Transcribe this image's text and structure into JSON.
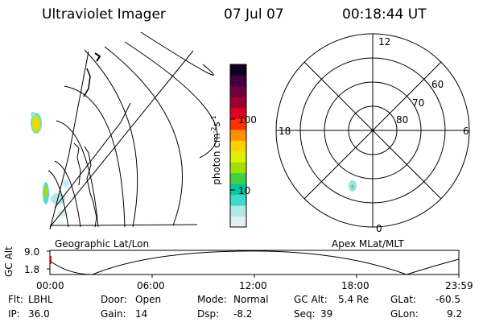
{
  "header": {
    "title": "Ultraviolet Imager",
    "date": "07 Jul 07",
    "time": "00:18:44 UT"
  },
  "colorbar": {
    "label_prefix": "photon cm",
    "label_exp1": "-2",
    "label_mid": "s",
    "label_exp2": "-1",
    "ticks": [
      "100",
      "10"
    ],
    "colors": [
      "#e0f0f0",
      "#b0e8e8",
      "#40d8c8",
      "#00c8a0",
      "#40d040",
      "#a0e000",
      "#e0f000",
      "#ffd000",
      "#ff9000",
      "#ff3000",
      "#e00020",
      "#a00030",
      "#700040",
      "#400040",
      "#100020"
    ]
  },
  "left_panel": {
    "label": "Geographic Lat/Lon"
  },
  "right_panel": {
    "label": "Apex MLat/MLT",
    "mlt_labels": {
      "top": "12",
      "bottom": "0",
      "left": "18",
      "right": "6"
    },
    "lat_labels": [
      "60",
      "70",
      "80"
    ]
  },
  "alt_plot": {
    "ylabel": "GC Alt",
    "yticks": [
      "9.0",
      "1.8"
    ],
    "xticks": [
      "00:00",
      "06:00",
      "12:00",
      "18:00",
      "23:59"
    ]
  },
  "info": {
    "filter_label": "Flt:",
    "filter_value": "LBHL",
    "ip_label": "IP:",
    "ip_value": "36.0",
    "door_label": "Door:",
    "door_value": "Open",
    "gain_label": "Gain:",
    "gain_value": "14",
    "mode_label": "Mode:",
    "mode_value": "Normal",
    "dsp_label": "Dsp:",
    "dsp_value": "-8.2",
    "gcalt_label": "GC Alt:",
    "gcalt_value": "5.4 Re",
    "seq_label": "Seq:",
    "seq_value": "39",
    "glat_label": "GLat:",
    "glat_value": "-60.5",
    "glon_label": "GLon:",
    "glon_value": "9.2"
  }
}
